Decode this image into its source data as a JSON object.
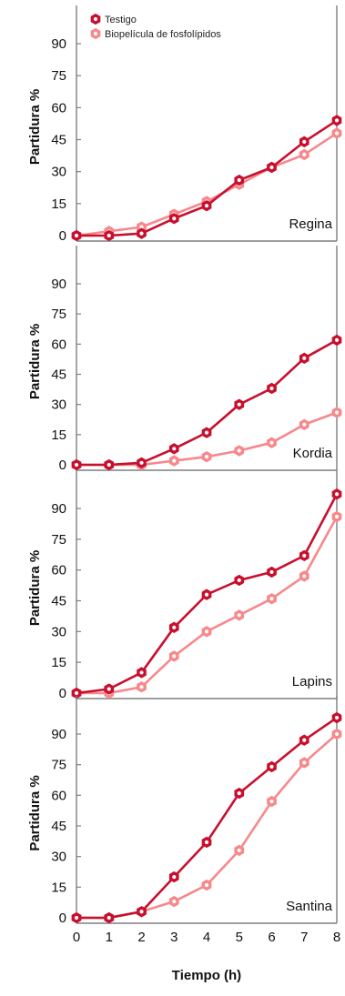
{
  "chart_data": {
    "type": "line",
    "x": [
      0,
      1,
      2,
      3,
      4,
      5,
      6,
      7,
      8
    ],
    "xlabel": "Tiempo (h)",
    "xlim": [
      0,
      8
    ],
    "ylabel": "Partidura %",
    "yticks": [
      0,
      15,
      30,
      45,
      60,
      75,
      90
    ],
    "legend": {
      "placement": "top-left",
      "entries": [
        "Testigo",
        "Biopelícula de fosfolípidos"
      ]
    },
    "colors": {
      "Testigo": "#c8102e",
      "Biopelícula de fosfolípidos": "#f7888c",
      "axis": "#7f7f7f"
    },
    "panels": [
      {
        "label": "Regina",
        "ylim": [
          0,
          100
        ],
        "series": [
          {
            "name": "Testigo",
            "values": [
              0,
              0,
              1,
              8,
              14,
              26,
              32,
              44,
              54
            ]
          },
          {
            "name": "Biopelícula de fosfolípidos",
            "values": [
              0,
              2,
              4,
              10,
              16,
              24,
              32,
              38,
              48
            ]
          }
        ]
      },
      {
        "label": "Kordia",
        "ylim": [
          0,
          100
        ],
        "series": [
          {
            "name": "Testigo",
            "values": [
              0,
              0,
              1,
              8,
              16,
              30,
              38,
              53,
              62
            ]
          },
          {
            "name": "Biopelícula de fosfolípidos",
            "values": [
              0,
              0,
              0,
              2,
              4,
              7,
              11,
              20,
              26
            ]
          }
        ]
      },
      {
        "label": "Lapins",
        "ylim": [
          0,
          100
        ],
        "series": [
          {
            "name": "Testigo",
            "values": [
              0,
              2,
              10,
              32,
              48,
              55,
              59,
              67,
              97
            ]
          },
          {
            "name": "Biopelícula de fosfolípidos",
            "values": [
              0,
              0,
              3,
              18,
              30,
              38,
              46,
              57,
              86
            ]
          }
        ]
      },
      {
        "label": "Santina",
        "ylim": [
          0,
          100
        ],
        "series": [
          {
            "name": "Testigo",
            "values": [
              0,
              0,
              3,
              20,
              37,
              61,
              74,
              87,
              98
            ]
          },
          {
            "name": "Biopelícula de fosfolípidos",
            "values": [
              0,
              0,
              3,
              8,
              16,
              33,
              57,
              76,
              90
            ]
          }
        ]
      }
    ]
  }
}
